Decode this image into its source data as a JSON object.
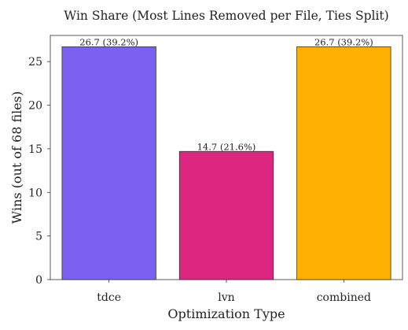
{
  "chart_data": {
    "type": "bar",
    "title": "Win Share (Most Lines Removed per File, Ties Split)",
    "xlabel": "Optimization Type",
    "ylabel": "Wins (out of 68 files)",
    "categories": [
      "tdce",
      "lvn",
      "combined"
    ],
    "values": [
      26.7,
      14.7,
      26.7
    ],
    "data_labels": [
      "26.7  (39.2%)",
      "14.7  (21.6%)",
      "26.7  (39.2%)"
    ],
    "colors": [
      "#7B61F0",
      "#DC267F",
      "#FFB000"
    ],
    "ylim": [
      0,
      28
    ],
    "yticks": [
      0,
      5,
      10,
      15,
      20,
      25
    ],
    "grid": false
  }
}
